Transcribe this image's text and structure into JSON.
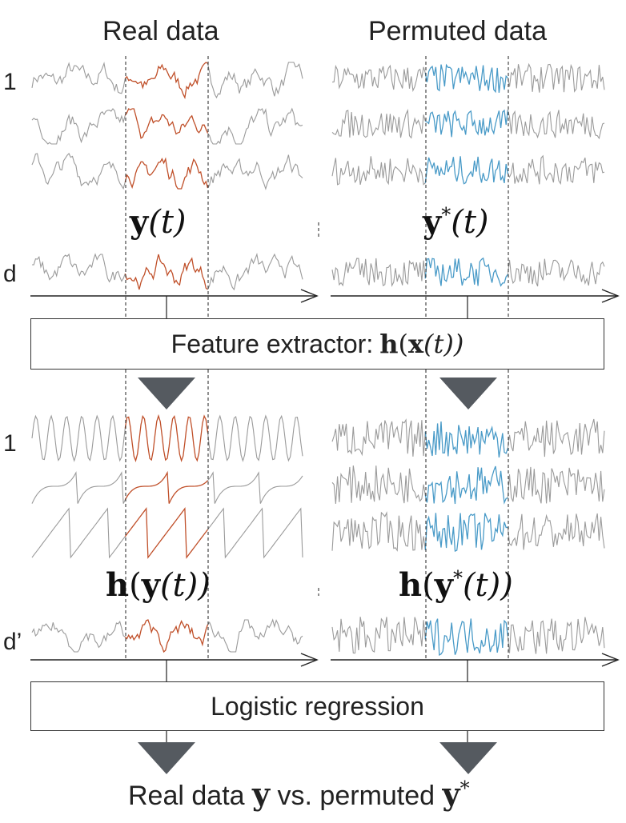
{
  "headers": {
    "left": "Real data",
    "right": "Permuted data"
  },
  "row_labels": {
    "top_first": "1",
    "top_last": "d",
    "bottom_first": "1",
    "bottom_last": "d’"
  },
  "math": {
    "y_left_bold": "y",
    "y_left_rest": "(t)",
    "y_right_bold": "y",
    "y_right_sup": "*",
    "y_right_rest": "(t)",
    "h_left_bold1": "h",
    "h_left_paren": "(",
    "h_left_bold2": "y",
    "h_left_rest": "(t))",
    "h_right_bold1": "h",
    "h_right_paren": "(",
    "h_right_bold2": "y",
    "h_right_sup": "*",
    "h_right_rest": "(t))"
  },
  "boxes": {
    "feature_label": "Feature extractor:",
    "feature_math_bold1": "h",
    "feature_math_paren": "(",
    "feature_math_bold2": "x",
    "feature_math_rest": "(t))",
    "logistic_label": "Logistic regression"
  },
  "bottom": {
    "text1": "Real data ",
    "y1": "y",
    "text2": " vs. permuted ",
    "y2": "y",
    "sup": "*"
  },
  "colors": {
    "real": "#c0502a",
    "permuted": "#4a9bc8",
    "context": "#9a9a9a",
    "arrow": "#555a60"
  }
}
